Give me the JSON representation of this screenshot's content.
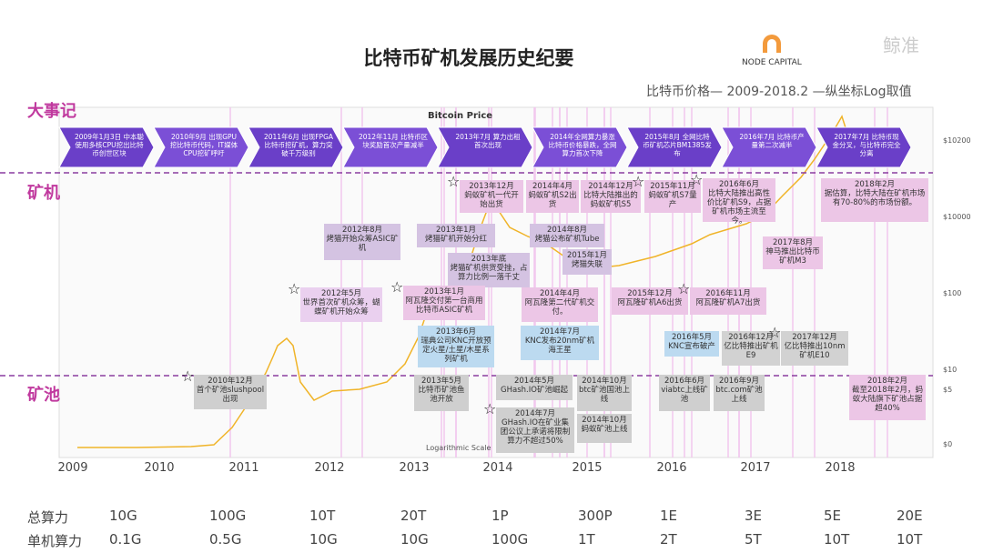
{
  "header": {
    "title": "比特币矿机发展历史纪要",
    "brand": "NODE CAPITAL",
    "watermark": "鲸准",
    "subtitle": "比特币价格— 2009-2018.2 —纵坐标Log取值"
  },
  "sections": [
    "大事记",
    "矿机",
    "矿池"
  ],
  "chart": {
    "title": "Bitcoin Price",
    "note": "Logarithmic Scale",
    "price_labels": [
      "$10200",
      "$10000",
      "$100",
      "$10",
      "$5",
      "$0"
    ],
    "years": [
      "2009",
      "2010",
      "2011",
      "2012",
      "2013",
      "2014",
      "2015",
      "2016",
      "2017",
      "2018"
    ]
  },
  "milestones": [
    "2009年1月3日 中本聪使用多核CPU挖出比特币创世区块",
    "2010年9月 出现GPU挖比特币代码，IT媒体CPU挖矿呼吁",
    "2011年6月 出现FPGA比特币挖矿机，算力突破千万级别",
    "2012年11月 比特币区块奖励首次产量减半",
    "2013年7月 算力出租首次出现",
    "2014年全网算力暴涨 比特币价格暴跌，全网算力首次下降",
    "2015年8月 全网比特币矿机芯片BM1385发布",
    "2016年7月 比特币产量第二次减半",
    "2017年7月 比特币现金分叉，与比特币完全分离"
  ],
  "miners": [
    {
      "date": "2013年12月",
      "text": "蚂蚁矿机一代开始出货",
      "color": "#ecc6e6",
      "star": true
    },
    {
      "date": "2014年4月",
      "text": "蚂蚁矿机S2出货",
      "color": "#ecc6e6"
    },
    {
      "date": "2014年12月",
      "text": "比特大陆推出的蚂蚁矿机S5",
      "color": "#ecc6e6"
    },
    {
      "date": "2015年11月",
      "text": "蚂蚁矿机S7量产",
      "color": "#ecc6e6",
      "star": true
    },
    {
      "date": "2016年6月",
      "text": "比特大陆推出高性价比矿机S9，占据矿机市场主流至今。",
      "color": "#ecc6e6",
      "star": true
    },
    {
      "date": "2018年2月",
      "text": "据估算，比特大陆在矿机市场有70-80%的市场份额。",
      "color": "#ecc6e6"
    },
    {
      "date": "2012年8月",
      "text": "烤猫开始众筹ASIC矿机",
      "color": "#d4c3e2"
    },
    {
      "date": "2013年1月",
      "text": "烤猫矿机开始分红",
      "color": "#d4c3e2"
    },
    {
      "date": "2014年8月",
      "text": "烤猫公布矿机Tube",
      "color": "#d4c3e2"
    },
    {
      "date": "2013年底",
      "text": "烤猫矿机供货受挫，占算力比例一落千丈",
      "color": "#d4c3e2"
    },
    {
      "date": "2015年1月",
      "text": "烤猫失联",
      "color": "#d4c3e2"
    },
    {
      "date": "2017年8月",
      "text": "神马推出比特币矿机M3",
      "color": "#ecc6e6"
    },
    {
      "date": "2012年5月",
      "text": "世界首次矿机众筹，蝴蝶矿机开始众筹",
      "color": "#ead0ef",
      "star": true
    },
    {
      "date": "2013年1月",
      "text": "阿瓦隆交付第一台商用比特币ASIC矿机",
      "color": "#ecc6e6",
      "star": true
    },
    {
      "date": "2014年4月",
      "text": "阿瓦隆第二代矿机交付。",
      "color": "#ecc6e6"
    },
    {
      "date": "2015年12月",
      "text": "阿瓦隆矿机A6出货",
      "color": "#ecc6e6"
    },
    {
      "date": "2016年11月",
      "text": "阿瓦隆矿机A7出货",
      "color": "#ecc6e6",
      "star": true
    },
    {
      "date": "2013年6月",
      "text": "瑞典公司KNC开放预定火星/土星/木星系列矿机",
      "color": "#bcdaf0"
    },
    {
      "date": "2014年7月",
      "text": "KNC发布20nm矿机海王星",
      "color": "#bcdaf0"
    },
    {
      "date": "2016年5月",
      "text": "KNC宣布破产",
      "color": "#bcdaf0"
    },
    {
      "date": "2016年12月",
      "text": "亿比特推出矿机E9",
      "color": "#d2d2d2"
    },
    {
      "date": "2017年12月",
      "text": "亿比特推出10nm矿机E10",
      "color": "#d2d2d2",
      "star": true
    }
  ],
  "pools": [
    {
      "date": "2010年12月",
      "text": "首个矿池slushpool出现",
      "color": "#cfcfcf",
      "star": true
    },
    {
      "date": "2013年5月",
      "text": "比特币矿池鱼池开放",
      "color": "#cfcfcf"
    },
    {
      "date": "2014年5月",
      "text": "GHash.IO矿池崛起",
      "color": "#cfcfcf"
    },
    {
      "date": "2014年10月",
      "text": "btc矿池国池上线",
      "color": "#cfcfcf"
    },
    {
      "date": "2016年6月",
      "text": "viabtc上线矿池",
      "color": "#cfcfcf"
    },
    {
      "date": "2016年9月",
      "text": "btc.com矿池上线",
      "color": "#cfcfcf"
    },
    {
      "date": "2018年2月",
      "text": "截至2018年2月，蚂蚁大陆旗下矿池占据超40%",
      "color": "#ecc6e6"
    },
    {
      "date": "2014年7月",
      "text": "GHash.IO在矿业集团公议上承诺将限制算力不超过50%",
      "color": "#cfcfcf",
      "star": true
    },
    {
      "date": "2014年10月",
      "text": "蚂蚁矿池上线",
      "color": "#cfcfcf"
    }
  ],
  "hashrate": {
    "rows": [
      [
        "总算力",
        "10G",
        "100G",
        "10T",
        "20T",
        "1P",
        "300P",
        "1E",
        "3E",
        "5E",
        "20E"
      ],
      [
        "单机算力",
        "0.1G",
        "0.5G",
        "10G",
        "10G",
        "100G",
        "1T",
        "2T",
        "5T",
        "10T",
        "10T"
      ]
    ]
  }
}
